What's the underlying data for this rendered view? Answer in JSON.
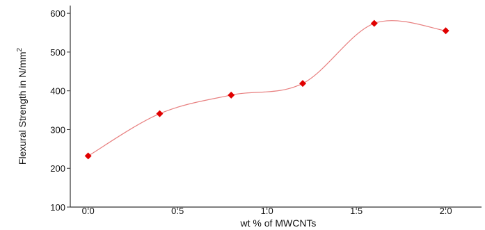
{
  "chart_data": {
    "type": "line",
    "title": "",
    "xlabel": "wt % of MWCNTs",
    "ylabel": "Flexural Strength in N/mm",
    "ylabel_superscript": "2",
    "xlim": [
      -0.1,
      2.2
    ],
    "ylim": [
      100,
      620
    ],
    "xticks": [
      0.0,
      0.5,
      1.0,
      1.5,
      2.0
    ],
    "xtick_labels": [
      "0.0",
      "0.5",
      "1.0",
      "1.5",
      "2.0"
    ],
    "yticks": [
      100,
      200,
      300,
      400,
      500,
      600
    ],
    "ytick_labels": [
      "100",
      "200",
      "300",
      "400",
      "500",
      "600"
    ],
    "grid": false,
    "smooth": true,
    "series": [
      {
        "x": [
          0.0,
          0.4,
          0.8,
          1.2,
          1.6,
          2.0
        ],
        "y": [
          232,
          341,
          389,
          419,
          574,
          555
        ],
        "marker": "diamond",
        "marker_color": "#e00000",
        "line_color": "#e88080"
      }
    ]
  }
}
